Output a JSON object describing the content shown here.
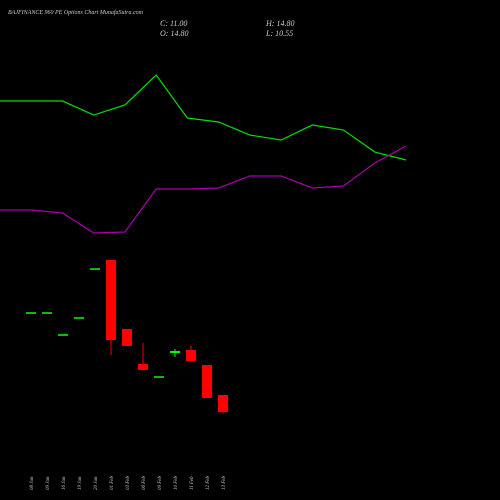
{
  "chart_data": [
    {
      "type": "candlestick",
      "title": "BAJFINANCE 960 PE Options Chart MunafaSutra.com",
      "annotations": [
        "C: 11.00",
        "H: 14.80",
        "O: 14.80",
        "L: 10.55"
      ],
      "categories": [
        "08 Jan",
        "09 Jan",
        "16 Jan",
        "19 Jan",
        "20 Jan",
        "01 Feb",
        "03 Feb",
        "06 Feb",
        "09 Feb",
        "10 Feb",
        "11 Feb",
        "12 Feb",
        "13 Feb"
      ],
      "open": [
        33.13,
        33.13,
        28.21,
        32.01,
        42.96,
        44.97,
        29.55,
        21.73,
        18.82,
        24.19,
        24.86,
        21.51,
        14.8
      ],
      "high": [
        33.13,
        33.13,
        28.21,
        32.01,
        42.96,
        44.97,
        29.55,
        26.42,
        18.82,
        25.08,
        25.75,
        21.51,
        14.8
      ],
      "low": [
        33.13,
        33.13,
        28.21,
        32.01,
        42.96,
        23.74,
        25.75,
        20.39,
        18.82,
        23.29,
        22.4,
        14.13,
        10.55
      ],
      "close": [
        33.13,
        33.13,
        28.21,
        32.01,
        42.96,
        27.09,
        25.75,
        20.39,
        18.82,
        24.63,
        22.4,
        14.13,
        11.0
      ],
      "up_color": "#00ff00",
      "down_color": "#ff0000",
      "ylim": [
        -8.67,
        103.09
      ]
    },
    {
      "type": "line",
      "categories": [
        null,
        null,
        null,
        null,
        null,
        null,
        null,
        null,
        null,
        null,
        null,
        null,
        null,
        null
      ],
      "series": [
        {
          "color": "#00e000",
          "values": [
            80.51,
            80.51,
            80.51,
            77.38,
            79.62,
            86.32,
            76.71,
            75.82,
            72.91,
            71.8,
            75.15,
            74.03,
            69.11,
            67.33
          ]
        },
        {
          "color": "#a800a8",
          "values": [
            56.15,
            56.15,
            55.48,
            51.01,
            51.23,
            60.84,
            60.84,
            61.07,
            63.75,
            63.75,
            61.07,
            61.51,
            66.65,
            70.45
          ]
        }
      ],
      "ylim": [
        -8.67,
        103.09
      ]
    }
  ]
}
